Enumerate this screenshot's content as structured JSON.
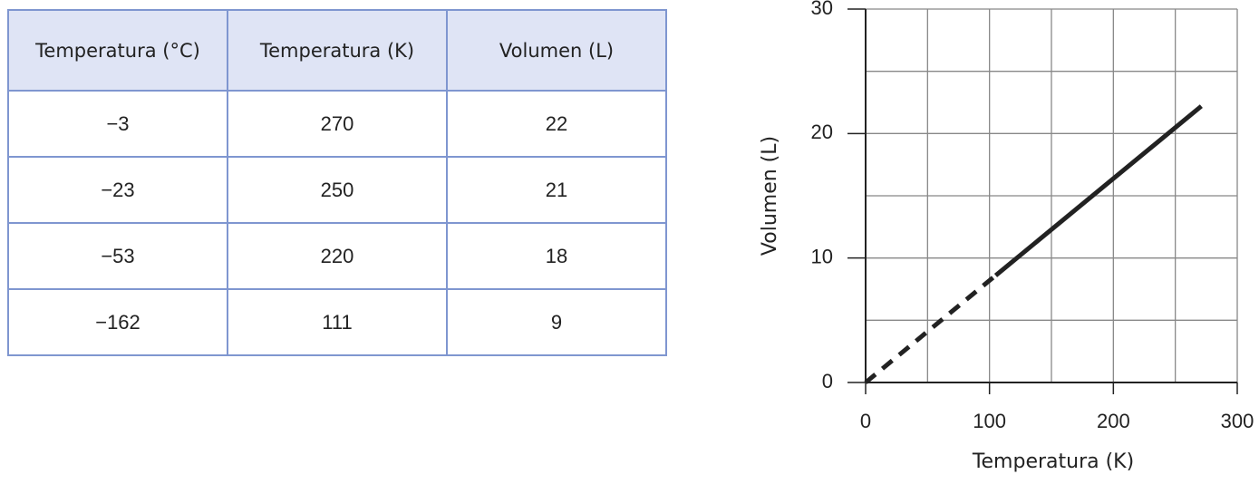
{
  "table": {
    "header": [
      "Temperatura (°C)",
      "Temperatura (K)",
      "Volumen (L)"
    ],
    "rows": [
      [
        "−3",
        "270",
        "22"
      ],
      [
        "−23",
        "250",
        "21"
      ],
      [
        "−53",
        "220",
        "18"
      ],
      [
        "−162",
        "111",
        "9"
      ]
    ]
  },
  "chart_data": {
    "type": "line",
    "xlabel": "Temperatura (K)",
    "ylabel": "Volumen (L)",
    "xlim": [
      0,
      300
    ],
    "ylim": [
      0,
      30
    ],
    "xticks": [
      0,
      100,
      200,
      300
    ],
    "yticks": [
      0,
      10,
      20,
      30
    ],
    "xminor": [
      50,
      150,
      250
    ],
    "yminor": [
      5,
      15,
      25
    ],
    "grid": true,
    "series": [
      {
        "color": "#222222",
        "style": "dashed",
        "x": [
          0,
          105
        ],
        "values": [
          0,
          8.6
        ]
      },
      {
        "color": "#222222",
        "style": "solid",
        "x": [
          105,
          271
        ],
        "values": [
          8.6,
          22.2
        ]
      }
    ]
  }
}
